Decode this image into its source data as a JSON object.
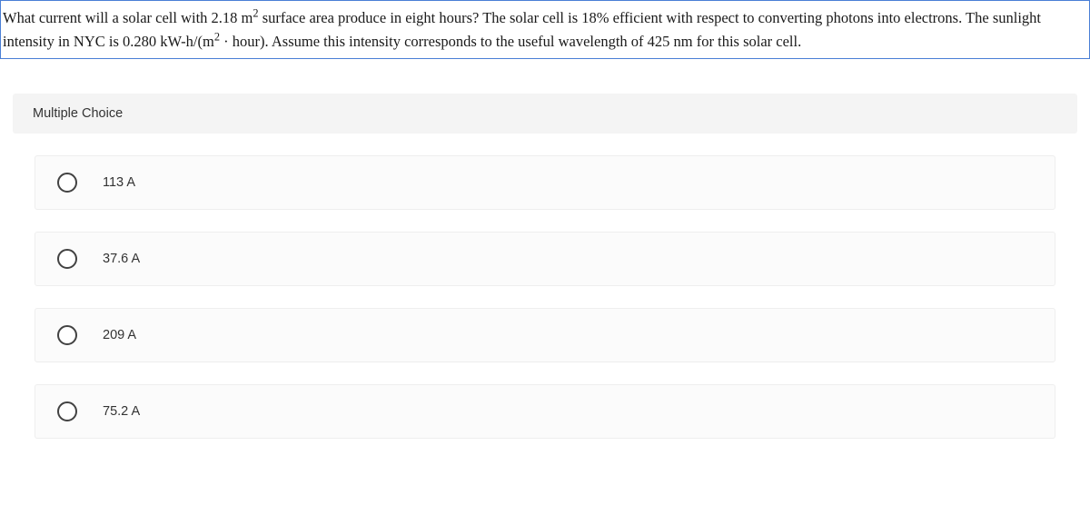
{
  "question": {
    "text_parts": {
      "p1": "What current will a solar cell with 2.18 m",
      "sup1": "2",
      "p2": " surface area produce in eight hours? The solar cell is 18% efficient with respect to converting photons into electrons. The sunlight intensity in NYC is 0.280 kW-h/(m",
      "sup2": "2",
      "p3": " · hour). Assume this intensity corresponds to the useful wavelength of 425 nm for this solar cell."
    },
    "border_color": "#4a7fd6"
  },
  "section_header": "Multiple Choice",
  "choices": [
    {
      "label": "113 A"
    },
    {
      "label": "37.6 A"
    },
    {
      "label": "209 A"
    },
    {
      "label": "75.2 A"
    }
  ],
  "colors": {
    "page_bg": "#ffffff",
    "text": "#1a1a1a",
    "choice_bg": "#fbfbfb",
    "choice_border": "#eeeeee",
    "header_bg": "#f4f4f4",
    "radio_border": "#424242"
  }
}
